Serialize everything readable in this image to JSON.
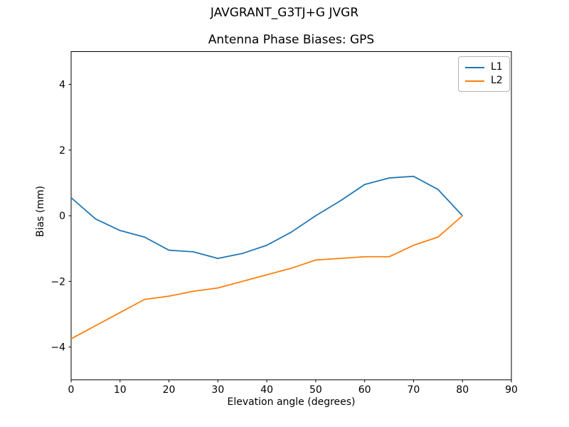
{
  "suptitle": "JAVGRANT_G3TJ+G JVGR",
  "chart_data": {
    "type": "line",
    "title": "Antenna Phase Biases: GPS",
    "xlabel": "Elevation angle (degrees)",
    "ylabel": "Bias (mm)",
    "xlim": [
      0,
      90
    ],
    "ylim": [
      -5,
      5
    ],
    "xticks": [
      0,
      10,
      20,
      30,
      40,
      50,
      60,
      70,
      80,
      90
    ],
    "yticks": [
      -4,
      -2,
      0,
      2,
      4
    ],
    "grid": false,
    "axis_color": "#000000",
    "background": "#ffffff",
    "legend_position": "upper right",
    "x": [
      0,
      5,
      10,
      15,
      20,
      25,
      30,
      35,
      40,
      45,
      50,
      55,
      60,
      65,
      70,
      75,
      80
    ],
    "series": [
      {
        "name": "L1",
        "color": "#1f77b4",
        "values": [
          0.55,
          -0.1,
          -0.45,
          -0.65,
          -1.05,
          -1.1,
          -1.3,
          -1.15,
          -0.9,
          -0.5,
          0.0,
          0.45,
          0.95,
          1.15,
          1.2,
          0.8,
          0.0
        ]
      },
      {
        "name": "L2",
        "color": "#ff7f0e",
        "values": [
          -3.75,
          -3.35,
          -2.95,
          -2.55,
          -2.45,
          -2.3,
          -2.2,
          -2.0,
          -1.8,
          -1.6,
          -1.35,
          -1.3,
          -1.25,
          -1.25,
          -0.9,
          -0.65,
          0.0
        ]
      }
    ]
  }
}
